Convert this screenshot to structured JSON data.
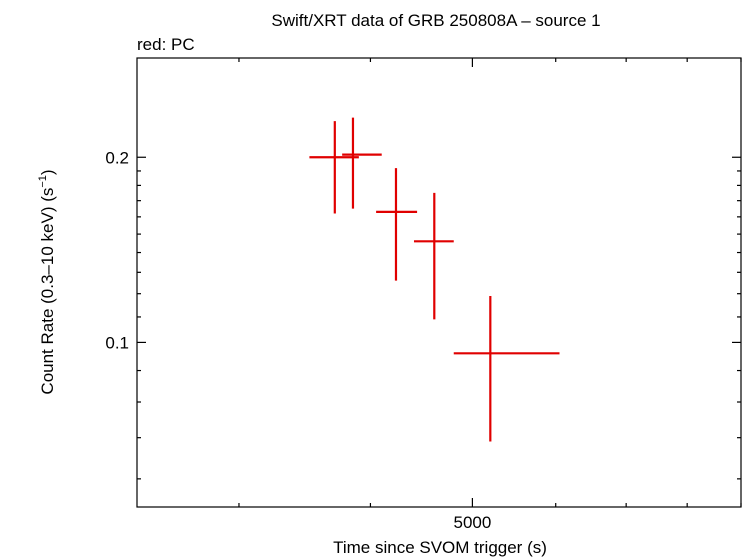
{
  "chart_data": {
    "type": "scatter",
    "title": "Swift/XRT data of GRB 250808A – source 1",
    "subtitle": "red: PC",
    "xlabel": "Time since SVOM trigger (s)",
    "ylabel_main": "Count Rate (0.3–10 keV) (s",
    "ylabel_sup": "−1",
    "ylabel_tail": ")",
    "x_scale": "log",
    "y_scale": "log",
    "xlim": [
      2400,
      9000
    ],
    "ylim": [
      0.054,
      0.29
    ],
    "x_ticks": [
      {
        "value": 5000,
        "label": "5000"
      }
    ],
    "y_ticks": [
      {
        "value": 0.1,
        "label": "0.1"
      },
      {
        "value": 0.2,
        "label": "0.2"
      }
    ],
    "grid": false,
    "series": [
      {
        "color": "#e00000",
        "points": [
          {
            "x": 3700,
            "xerr_low": 3500,
            "xerr_high": 3900,
            "y": 0.2,
            "yerr_low": 0.162,
            "yerr_high": 0.229
          },
          {
            "x": 3850,
            "xerr_low": 3760,
            "xerr_high": 4100,
            "y": 0.202,
            "yerr_low": 0.165,
            "yerr_high": 0.232
          },
          {
            "x": 4230,
            "xerr_low": 4050,
            "xerr_high": 4430,
            "y": 0.163,
            "yerr_low": 0.126,
            "yerr_high": 0.192
          },
          {
            "x": 4600,
            "xerr_low": 4400,
            "xerr_high": 4800,
            "y": 0.146,
            "yerr_low": 0.109,
            "yerr_high": 0.175
          },
          {
            "x": 5200,
            "xerr_low": 4800,
            "xerr_high": 6050,
            "y": 0.096,
            "yerr_low": 0.069,
            "yerr_high": 0.119
          }
        ]
      }
    ]
  }
}
